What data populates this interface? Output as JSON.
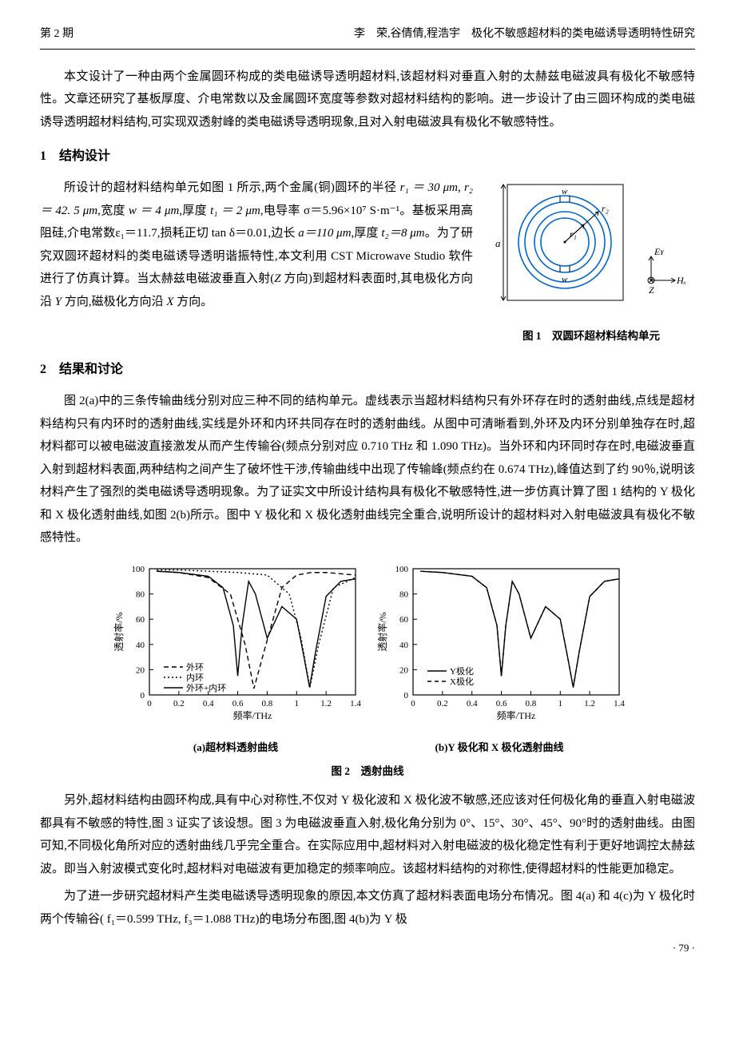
{
  "header": {
    "left": "第 2 期",
    "right": "李　荣,谷倩倩,程浩宇　极化不敏感超材料的类电磁诱导透明特性研究"
  },
  "intro": "本文设计了一种由两个金属圆环构成的类电磁诱导透明超材料,该超材料对垂直入射的太赫兹电磁波具有极化不敏感特性。文章还研究了基板厚度、介电常数以及金属圆环宽度等参数对超材料结构的影响。进一步设计了由三圆环构成的类电磁诱导透明超材料结构,可实现双透射峰的类电磁诱导透明现象,且对入射电磁波具有极化不敏感特性。",
  "s1": {
    "title": "1　结构设计",
    "p1a": "所设计的超材料结构单元如图 1 所示,两个金属(铜)圆环的半径 ",
    "p1b": ",宽度 ",
    "p1c": ",厚度 ",
    "p1d": ",电导率 σ＝5.96×10⁷ S·m⁻¹。基板采用高阻硅,介电常数ε₁＝11.7,损耗正切 tan δ＝0.01,边长 ",
    "p1e": ",厚度 ",
    "p1f": "。为了研究双圆环超材料的类电磁诱导透明谐振特性,本文利用 CST Microwave Studio 软件进行了仿真计算。当太赫兹电磁波垂直入射(",
    "p1g": " 方向)到超材料表面时,其电极化方向沿 ",
    "p1h": " 方向,磁极化方向沿 ",
    "p1i": " 方向。",
    "r1": "r₁ ＝ 30 μm, r₂ ＝ 42. 5 μm",
    "w": "w ＝ 4 μm",
    "t1": "t₁ ＝ 2 μm",
    "a": "a＝110 μm",
    "t2": "t₂＝8 μm",
    "Z": "Z",
    "Y": "Y",
    "X": "X"
  },
  "fig1": {
    "caption": "图 1　双圆环超材料结构单元",
    "labels": {
      "a": "a",
      "w1": "w",
      "w2": "w",
      "r1": "r₁",
      "r2": "r₂",
      "Ey": "Eʏ",
      "Hx": "Hₓ",
      "Z": "Z"
    },
    "colors": {
      "ring": "#0066cc",
      "line": "#000000"
    }
  },
  "s2": {
    "title": "2　结果和讨论",
    "p1": "图 2(a)中的三条传输曲线分别对应三种不同的结构单元。虚线表示当超材料结构只有外环存在时的透射曲线,点线是超材料结构只有内环时的透射曲线,实线是外环和内环共同存在时的透射曲线。从图中可清晰看到,外环及内环分别单独存在时,超材料都可以被电磁波直接激发从而产生传输谷(频点分别对应 0.710 THz 和 1.090 THz)。当外环和内环同时存在时,电磁波垂直入射到超材料表面,两种结构之间产生了破坏性干涉,传输曲线中出现了传输峰(频点约在 0.674 THz),峰值达到了约 90％,说明该材料产生了强烈的类电磁诱导透明现象。为了证实文中所设计结构具有极化不敏感特性,进一步仿真计算了图 1 结构的 Y 极化和 X 极化透射曲线,如图 2(b)所示。图中 Y 极化和 X 极化透射曲线完全重合,说明所设计的超材料对入射电磁波具有极化不敏感特性。",
    "p2": "另外,超材料结构由圆环构成,具有中心对称性,不仅对 Y 极化波和 X 极化波不敏感,还应该对任何极化角的垂直入射电磁波都具有不敏感的特性,图 3 证实了该设想。图 3 为电磁波垂直入射,极化角分别为 0°、15°、30°、45°、90°时的透射曲线。由图可知,不同极化角所对应的透射曲线几乎完全重合。在实际应用中,超材料对入射电磁波的极化稳定性有利于更好地调控太赫兹波。即当入射波模式变化时,超材料对电磁波有更加稳定的频率响应。该超材料结构的对称性,使得超材料的性能更加稳定。",
    "p3": "为了进一步研究超材料产生类电磁诱导透明现象的原因,本文仿真了超材料表面电场分布情况。图 4(a) 和 4(c)为 Y 极化时两个传输谷( f₁＝0.599 THz, f₃＝1.088 THz)的电场分布图,图 4(b)为 Y 极"
  },
  "fig2": {
    "caption": "图 2　透射曲线",
    "sub_a": "(a)超材料透射曲线",
    "sub_b": "(b)Y 极化和 X 极化透射曲线",
    "xlabel": "频率/THz",
    "ylabel": "透射率/%",
    "xlim": [
      0,
      1.4
    ],
    "ylim": [
      0,
      100
    ],
    "xticks": [
      0,
      0.2,
      0.4,
      0.6,
      0.8,
      1.0,
      1.2,
      1.4
    ],
    "yticks": [
      0,
      20,
      40,
      60,
      80,
      100
    ],
    "colors": {
      "outer": "#000000",
      "inner": "#000000",
      "both": "#000000",
      "y": "#000000",
      "x": "#000000",
      "grid": "#ffffff",
      "bg": "#ffffff",
      "axis": "#000000"
    },
    "legend_a": [
      "外环",
      "内环",
      "外环+内环"
    ],
    "legend_b": [
      "Y极化",
      "X极化"
    ],
    "series_a": {
      "outer": {
        "x": [
          0.05,
          0.2,
          0.4,
          0.55,
          0.65,
          0.71,
          0.78,
          0.9,
          1.0,
          1.1,
          1.2,
          1.3,
          1.4
        ],
        "y": [
          98,
          97,
          93,
          80,
          40,
          5,
          35,
          85,
          95,
          97,
          97,
          96,
          95
        ],
        "dash": "6,4"
      },
      "inner": {
        "x": [
          0.05,
          0.2,
          0.4,
          0.6,
          0.8,
          0.95,
          1.03,
          1.09,
          1.15,
          1.25,
          1.4
        ],
        "y": [
          99,
          99,
          98,
          97,
          95,
          80,
          45,
          6,
          40,
          85,
          93
        ],
        "dash": "2,3"
      },
      "both": {
        "x": [
          0.05,
          0.2,
          0.4,
          0.5,
          0.57,
          0.6,
          0.63,
          0.674,
          0.72,
          0.8,
          0.9,
          1.0,
          1.05,
          1.088,
          1.13,
          1.2,
          1.3,
          1.4
        ],
        "y": [
          98,
          97,
          94,
          85,
          55,
          15,
          55,
          90,
          80,
          45,
          70,
          60,
          30,
          6,
          35,
          78,
          90,
          92
        ],
        "dash": ""
      }
    },
    "series_b": {
      "y": {
        "x": [
          0.05,
          0.2,
          0.4,
          0.5,
          0.57,
          0.6,
          0.63,
          0.674,
          0.72,
          0.8,
          0.9,
          1.0,
          1.05,
          1.088,
          1.13,
          1.2,
          1.3,
          1.4
        ],
        "y": [
          98,
          97,
          94,
          85,
          55,
          15,
          55,
          90,
          80,
          45,
          70,
          60,
          30,
          6,
          35,
          78,
          90,
          92
        ],
        "dash": ""
      },
      "x": {
        "x": [
          0.05,
          0.2,
          0.4,
          0.5,
          0.57,
          0.6,
          0.63,
          0.674,
          0.72,
          0.8,
          0.9,
          1.0,
          1.05,
          1.088,
          1.13,
          1.2,
          1.3,
          1.4
        ],
        "y": [
          98,
          97,
          94,
          85,
          55,
          15,
          55,
          90,
          80,
          45,
          70,
          60,
          30,
          6,
          35,
          78,
          90,
          92
        ],
        "dash": "5,4"
      }
    }
  },
  "pagenum": "· 79 ·"
}
